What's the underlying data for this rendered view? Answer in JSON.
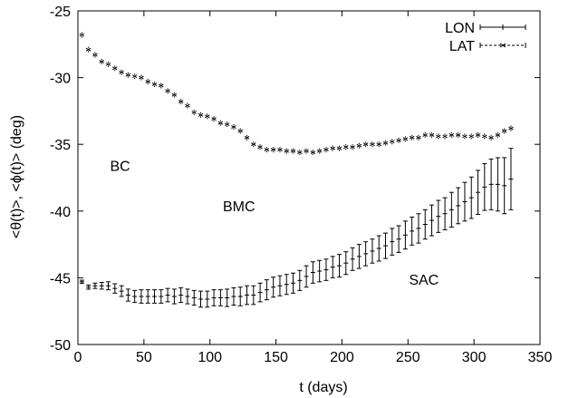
{
  "chart_data": {
    "type": "scatter",
    "xlabel": "t  (days)",
    "ylabel": "<θ(t)>, <ϕ(t)>  (deg)",
    "xlim": [
      0,
      350
    ],
    "ylim": [
      -50,
      -25
    ],
    "xticks": [
      0,
      50,
      100,
      150,
      200,
      250,
      300,
      350
    ],
    "yticks": [
      -50,
      -45,
      -40,
      -35,
      -30,
      -25
    ],
    "grid": false,
    "legend_position": "top-right",
    "annotations": [
      {
        "text": "BC",
        "x": 32,
        "y": -37.0
      },
      {
        "text": "BMC",
        "x": 122,
        "y": -40.0
      },
      {
        "text": "SAC",
        "x": 262,
        "y": -45.5
      }
    ],
    "series": [
      {
        "name": "LON",
        "marker": "plus",
        "line": "solid",
        "x": [
          3,
          8,
          13,
          18,
          23,
          28,
          33,
          38,
          43,
          48,
          53,
          58,
          63,
          68,
          73,
          78,
          83,
          88,
          93,
          98,
          103,
          108,
          113,
          118,
          123,
          128,
          133,
          138,
          143,
          148,
          153,
          158,
          163,
          168,
          173,
          178,
          183,
          188,
          193,
          198,
          203,
          208,
          213,
          218,
          223,
          228,
          233,
          238,
          243,
          248,
          253,
          258,
          263,
          268,
          273,
          278,
          283,
          288,
          293,
          298,
          303,
          308,
          313,
          318,
          323,
          328
        ],
        "y": [
          -45.3,
          -45.7,
          -45.6,
          -45.6,
          -45.6,
          -45.8,
          -46.0,
          -46.3,
          -46.4,
          -46.4,
          -46.4,
          -46.4,
          -46.4,
          -46.3,
          -46.4,
          -46.3,
          -46.4,
          -46.5,
          -46.6,
          -46.6,
          -46.5,
          -46.5,
          -46.5,
          -46.4,
          -46.4,
          -46.3,
          -46.3,
          -46.1,
          -45.9,
          -45.7,
          -45.6,
          -45.5,
          -45.4,
          -45.2,
          -44.9,
          -44.6,
          -44.5,
          -44.4,
          -44.2,
          -44.1,
          -43.9,
          -43.6,
          -43.4,
          -43.2,
          -43.0,
          -42.8,
          -42.6,
          -42.3,
          -42.1,
          -41.8,
          -41.5,
          -41.3,
          -41.0,
          -40.7,
          -40.4,
          -40.2,
          -39.9,
          -39.6,
          -39.3,
          -39.0,
          -38.6,
          -38.2,
          -38.0,
          -38.0,
          -38.1,
          -37.6
        ],
        "yerr": [
          0.12,
          0.15,
          0.2,
          0.25,
          0.3,
          0.35,
          0.4,
          0.45,
          0.45,
          0.5,
          0.5,
          0.5,
          0.5,
          0.5,
          0.55,
          0.55,
          0.55,
          0.55,
          0.6,
          0.6,
          0.6,
          0.6,
          0.65,
          0.65,
          0.7,
          0.7,
          0.7,
          0.7,
          0.75,
          0.75,
          0.75,
          0.75,
          0.75,
          0.75,
          0.8,
          0.8,
          0.8,
          0.8,
          0.8,
          0.85,
          0.85,
          0.85,
          0.9,
          0.9,
          0.9,
          0.95,
          0.95,
          1.0,
          1.0,
          1.05,
          1.05,
          1.1,
          1.1,
          1.15,
          1.2,
          1.2,
          1.3,
          1.35,
          1.45,
          1.55,
          1.65,
          1.75,
          1.9,
          2.0,
          2.1,
          2.3
        ]
      },
      {
        "name": "LAT",
        "marker": "x",
        "line": "dashed",
        "x": [
          3,
          8,
          13,
          18,
          23,
          28,
          33,
          38,
          43,
          48,
          53,
          58,
          63,
          68,
          73,
          78,
          83,
          88,
          93,
          98,
          103,
          108,
          113,
          118,
          123,
          128,
          133,
          138,
          143,
          148,
          153,
          158,
          163,
          168,
          173,
          178,
          183,
          188,
          193,
          198,
          203,
          208,
          213,
          218,
          223,
          228,
          233,
          238,
          243,
          248,
          253,
          258,
          263,
          268,
          273,
          278,
          283,
          288,
          293,
          298,
          303,
          308,
          313,
          318,
          323,
          328
        ],
        "y": [
          -26.8,
          -27.9,
          -28.3,
          -28.8,
          -29.0,
          -29.3,
          -29.6,
          -29.8,
          -29.9,
          -30.0,
          -30.3,
          -30.5,
          -30.6,
          -31.0,
          -31.3,
          -31.8,
          -32.1,
          -32.6,
          -32.8,
          -32.9,
          -33.1,
          -33.4,
          -33.5,
          -33.7,
          -34.0,
          -34.5,
          -35.0,
          -35.2,
          -35.4,
          -35.4,
          -35.4,
          -35.5,
          -35.5,
          -35.6,
          -35.5,
          -35.6,
          -35.5,
          -35.4,
          -35.3,
          -35.3,
          -35.2,
          -35.2,
          -35.1,
          -35.0,
          -35.0,
          -35.0,
          -34.9,
          -34.8,
          -34.7,
          -34.6,
          -34.5,
          -34.5,
          -34.3,
          -34.3,
          -34.4,
          -34.4,
          -34.3,
          -34.3,
          -34.4,
          -34.4,
          -34.3,
          -34.4,
          -34.5,
          -34.3,
          -34.0,
          -33.8
        ]
      }
    ]
  }
}
